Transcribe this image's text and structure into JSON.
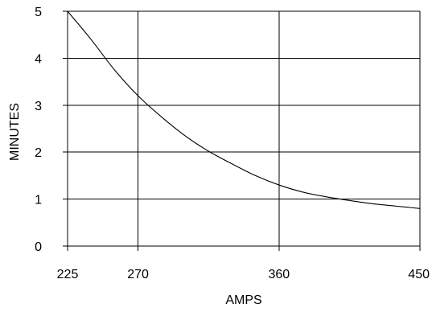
{
  "chart_data": {
    "type": "line",
    "title": "",
    "xlabel": "AMPS",
    "ylabel": "MINUTES",
    "xlim": [
      225,
      450
    ],
    "ylim": [
      0,
      5
    ],
    "xticks": [
      225,
      270,
      360,
      450
    ],
    "yticks": [
      0,
      1,
      2,
      3,
      4,
      5
    ],
    "x_tick_labels": [
      "225",
      "270",
      "360",
      "450"
    ],
    "y_tick_labels": [
      "0",
      "1",
      "2",
      "3",
      "4",
      "5"
    ],
    "grid": true,
    "legend": "none",
    "colors": {
      "line": "#000000",
      "grid": "#000000",
      "text": "#000000",
      "background": "#ffffff"
    },
    "series": [
      {
        "x": [
          225,
          240,
          255,
          270,
          285,
          300,
          315,
          330,
          345,
          360,
          375,
          390,
          405,
          420,
          435,
          450
        ],
        "y": [
          5.0,
          4.4,
          3.75,
          3.2,
          2.75,
          2.35,
          2.02,
          1.75,
          1.5,
          1.3,
          1.15,
          1.05,
          0.97,
          0.9,
          0.85,
          0.8
        ]
      }
    ]
  }
}
